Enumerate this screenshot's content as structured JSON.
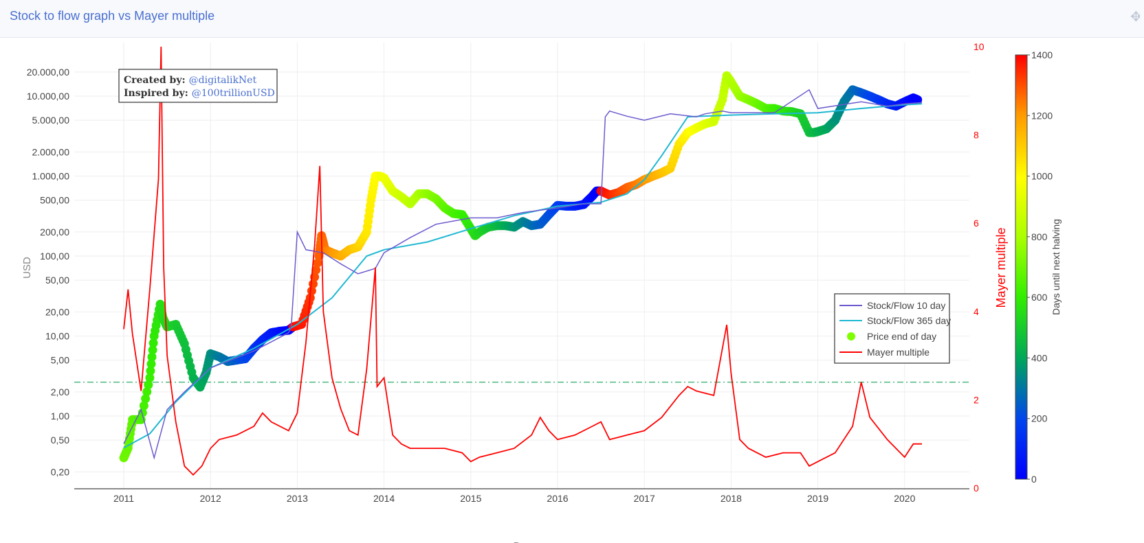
{
  "panel": {
    "title": "Stock to flow graph vs Mayer multiple",
    "drag_icon": "move-icon"
  },
  "chart_data": {
    "type": "line",
    "title": "",
    "xlabel": "D",
    "ylabel_left": "USD",
    "ylabel_right": "Mayer multiple",
    "colorbar_label": "Days until next halving",
    "y_scale_left": "log",
    "x_ticks": [
      "2011",
      "2012",
      "2013",
      "2014",
      "2015",
      "2016",
      "2017",
      "2018",
      "2019",
      "2020"
    ],
    "y_ticks_left": [
      "0,20",
      "0,50",
      "1,00",
      "2,00",
      "5,00",
      "10,00",
      "20,00",
      "50,00",
      "100,00",
      "200,00",
      "500,00",
      "1.000,00",
      "2.000,00",
      "5.000,00",
      "10.000,00",
      "20.000,00"
    ],
    "y_ticks_right": [
      "0",
      "2",
      "4",
      "6",
      "8",
      "10"
    ],
    "colorbar_ticks": [
      "0",
      "200",
      "400",
      "600",
      "800",
      "1000",
      "1200",
      "1400"
    ],
    "ylim_right": [
      0,
      10
    ],
    "colorbar_range": [
      0,
      1400
    ],
    "reference_line": {
      "axis": "right",
      "value": 2.4,
      "style": "dash-dot",
      "color": "#3cb371"
    },
    "annotation": {
      "created_label": "Created by:",
      "created_value": "@digitalikNet",
      "inspired_label": "Inspired by:",
      "inspired_value": "@100trillionUSD"
    },
    "legend": {
      "placement": "right",
      "entries": [
        {
          "name": "Stock/Flow 10 day",
          "color": "#6a5acd",
          "kind": "line"
        },
        {
          "name": "Stock/Flow 365 day",
          "color": "#1fb8d2",
          "kind": "line"
        },
        {
          "name": "Price end of day",
          "color": "#7fff00",
          "kind": "marker"
        },
        {
          "name": "Mayer multiple",
          "color": "#ff0000",
          "kind": "line"
        }
      ]
    },
    "series": [
      {
        "name": "Price end of day",
        "axis": "left",
        "x": [
          2011.0,
          2011.05,
          2011.1,
          2011.2,
          2011.3,
          2011.35,
          2011.42,
          2011.45,
          2011.5,
          2011.6,
          2011.7,
          2011.8,
          2011.88,
          2011.95,
          2012.0,
          2012.1,
          2012.2,
          2012.3,
          2012.4,
          2012.5,
          2012.6,
          2012.7,
          2012.8,
          2012.9,
          2012.95,
          2013.05,
          2013.15,
          2013.25,
          2013.28,
          2013.32,
          2013.4,
          2013.5,
          2013.6,
          2013.7,
          2013.8,
          2013.85,
          2013.9,
          2013.95,
          2014.0,
          2014.1,
          2014.2,
          2014.3,
          2014.4,
          2014.5,
          2014.6,
          2014.7,
          2014.8,
          2014.9,
          2015.0,
          2015.05,
          2015.1,
          2015.2,
          2015.3,
          2015.4,
          2015.5,
          2015.6,
          2015.7,
          2015.8,
          2015.9,
          2016.0,
          2016.1,
          2016.2,
          2016.3,
          2016.4,
          2016.45,
          2016.5,
          2016.6,
          2016.7,
          2016.8,
          2016.9,
          2017.0,
          2017.1,
          2017.2,
          2017.3,
          2017.4,
          2017.5,
          2017.6,
          2017.7,
          2017.8,
          2017.9,
          2017.95,
          2018.0,
          2018.1,
          2018.2,
          2018.3,
          2018.4,
          2018.5,
          2018.6,
          2018.7,
          2018.8,
          2018.9,
          2018.95,
          2019.0,
          2019.1,
          2019.2,
          2019.3,
          2019.4,
          2019.5,
          2019.6,
          2019.7,
          2019.8,
          2019.9,
          2020.0,
          2020.1,
          2020.15
        ],
        "values": [
          0.3,
          0.4,
          0.9,
          0.9,
          3,
          10,
          25,
          17,
          13,
          14,
          8,
          3,
          2.3,
          3.5,
          6,
          5.5,
          4.8,
          5,
          5.2,
          7,
          9,
          11,
          11.5,
          11.8,
          13,
          14,
          30,
          100,
          180,
          120,
          110,
          100,
          120,
          130,
          200,
          500,
          1000,
          1000,
          950,
          650,
          550,
          450,
          600,
          600,
          520,
          400,
          340,
          330,
          220,
          180,
          200,
          230,
          240,
          240,
          230,
          270,
          240,
          250,
          330,
          430,
          420,
          420,
          440,
          560,
          650,
          650,
          580,
          620,
          720,
          780,
          900,
          1000,
          1100,
          1250,
          2500,
          3500,
          4000,
          4500,
          4800,
          9000,
          18000,
          15000,
          10000,
          9000,
          8000,
          7000,
          7000,
          6500,
          6400,
          6000,
          3500,
          3500,
          3600,
          3900,
          5000,
          8500,
          12000,
          11000,
          10000,
          9000,
          8000,
          7500,
          8500,
          9500,
          9000
        ],
        "days_until_halving": [
          700,
          690,
          670,
          640,
          610,
          590,
          560,
          550,
          530,
          500,
          470,
          430,
          410,
          380,
          350,
          310,
          280,
          240,
          200,
          150,
          110,
          80,
          40,
          10,
          1400,
          1370,
          1330,
          1280,
          1270,
          1250,
          1210,
          1170,
          1130,
          1090,
          1040,
          1020,
          1000,
          980,
          960,
          920,
          880,
          840,
          800,
          760,
          720,
          680,
          640,
          610,
          570,
          550,
          530,
          490,
          450,
          410,
          370,
          330,
          290,
          250,
          220,
          180,
          140,
          100,
          60,
          20,
          1,
          1400,
          1360,
          1320,
          1280,
          1250,
          1210,
          1170,
          1130,
          1090,
          1050,
          1010,
          970,
          930,
          890,
          860,
          840,
          820,
          780,
          740,
          700,
          660,
          620,
          590,
          550,
          510,
          470,
          450,
          430,
          400,
          360,
          320,
          280,
          240,
          200,
          160,
          120,
          80,
          40,
          10,
          0
        ]
      },
      {
        "name": "Stock/Flow 365 day",
        "axis": "left",
        "x": [
          2011.0,
          2011.3,
          2011.6,
          2012.0,
          2012.5,
          2013.0,
          2013.4,
          2013.8,
          2014.0,
          2014.5,
          2015.0,
          2015.5,
          2016.0,
          2016.5,
          2016.8,
          2017.0,
          2017.2,
          2017.5,
          2018.0,
          2018.5,
          2019.0,
          2019.5,
          2020.0,
          2020.2
        ],
        "values": [
          0.4,
          0.6,
          1.5,
          4,
          7,
          14,
          30,
          100,
          120,
          150,
          220,
          320,
          420,
          470,
          600,
          900,
          1800,
          5500,
          5800,
          6000,
          6200,
          7000,
          7800,
          8000
        ]
      },
      {
        "name": "Stock/Flow 10 day",
        "axis": "left",
        "x": [
          2011.0,
          2011.2,
          2011.35,
          2011.5,
          2011.7,
          2012.0,
          2012.5,
          2012.9,
          2012.93,
          2013.0,
          2013.1,
          2013.3,
          2013.5,
          2013.7,
          2013.9,
          2014.0,
          2014.3,
          2014.6,
          2015.0,
          2015.3,
          2015.6,
          2016.0,
          2016.3,
          2016.5,
          2016.55,
          2016.6,
          2016.8,
          2017.0,
          2017.3,
          2017.6,
          2017.7,
          2017.9,
          2018.0,
          2018.5,
          2018.9,
          2019.0,
          2019.5,
          2019.8,
          2020.0,
          2020.2
        ],
        "values": [
          0.45,
          1.2,
          0.3,
          1.2,
          2,
          4,
          6.5,
          11,
          13,
          200,
          120,
          110,
          80,
          60,
          70,
          110,
          170,
          250,
          300,
          300,
          350,
          400,
          450,
          450,
          5500,
          6500,
          5600,
          5000,
          6000,
          5500,
          6000,
          6500,
          6200,
          6200,
          12000,
          7000,
          8500,
          7500,
          8000,
          8300
        ]
      },
      {
        "name": "Mayer multiple",
        "axis": "right",
        "x": [
          2011.0,
          2011.05,
          2011.1,
          2011.2,
          2011.3,
          2011.4,
          2011.43,
          2011.46,
          2011.5,
          2011.6,
          2011.7,
          2011.8,
          2011.9,
          2012.0,
          2012.1,
          2012.3,
          2012.5,
          2012.6,
          2012.7,
          2012.9,
          2013.0,
          2013.1,
          2013.2,
          2013.26,
          2013.3,
          2013.4,
          2013.5,
          2013.6,
          2013.7,
          2013.8,
          2013.9,
          2013.92,
          2014.0,
          2014.1,
          2014.2,
          2014.3,
          2014.5,
          2014.7,
          2014.9,
          2015.0,
          2015.1,
          2015.3,
          2015.5,
          2015.7,
          2015.8,
          2015.9,
          2016.0,
          2016.2,
          2016.4,
          2016.5,
          2016.6,
          2016.8,
          2017.0,
          2017.2,
          2017.4,
          2017.5,
          2017.6,
          2017.8,
          2017.95,
          2018.0,
          2018.1,
          2018.2,
          2018.4,
          2018.6,
          2018.8,
          2018.9,
          2019.0,
          2019.2,
          2019.4,
          2019.5,
          2019.6,
          2019.8,
          2019.9,
          2020.0,
          2020.1,
          2020.2
        ],
        "values": [
          3.6,
          4.5,
          3.5,
          2.2,
          4.5,
          7,
          10,
          5,
          3,
          1.5,
          0.5,
          0.3,
          0.5,
          0.9,
          1.1,
          1.2,
          1.4,
          1.7,
          1.5,
          1.3,
          1.7,
          3.3,
          5.5,
          7.3,
          4,
          2.5,
          1.8,
          1.3,
          1.2,
          2.7,
          5,
          2.3,
          2.5,
          1.2,
          1,
          0.9,
          0.9,
          0.9,
          0.8,
          0.6,
          0.7,
          0.8,
          0.9,
          1.2,
          1.6,
          1.3,
          1.1,
          1.2,
          1.4,
          1.5,
          1.1,
          1.2,
          1.3,
          1.6,
          2.1,
          2.3,
          2.2,
          2.1,
          3.7,
          2.6,
          1.1,
          0.9,
          0.7,
          0.8,
          0.8,
          0.5,
          0.6,
          0.8,
          1.4,
          2.4,
          1.6,
          1.1,
          0.9,
          0.7,
          1.0,
          1.0
        ]
      }
    ]
  }
}
